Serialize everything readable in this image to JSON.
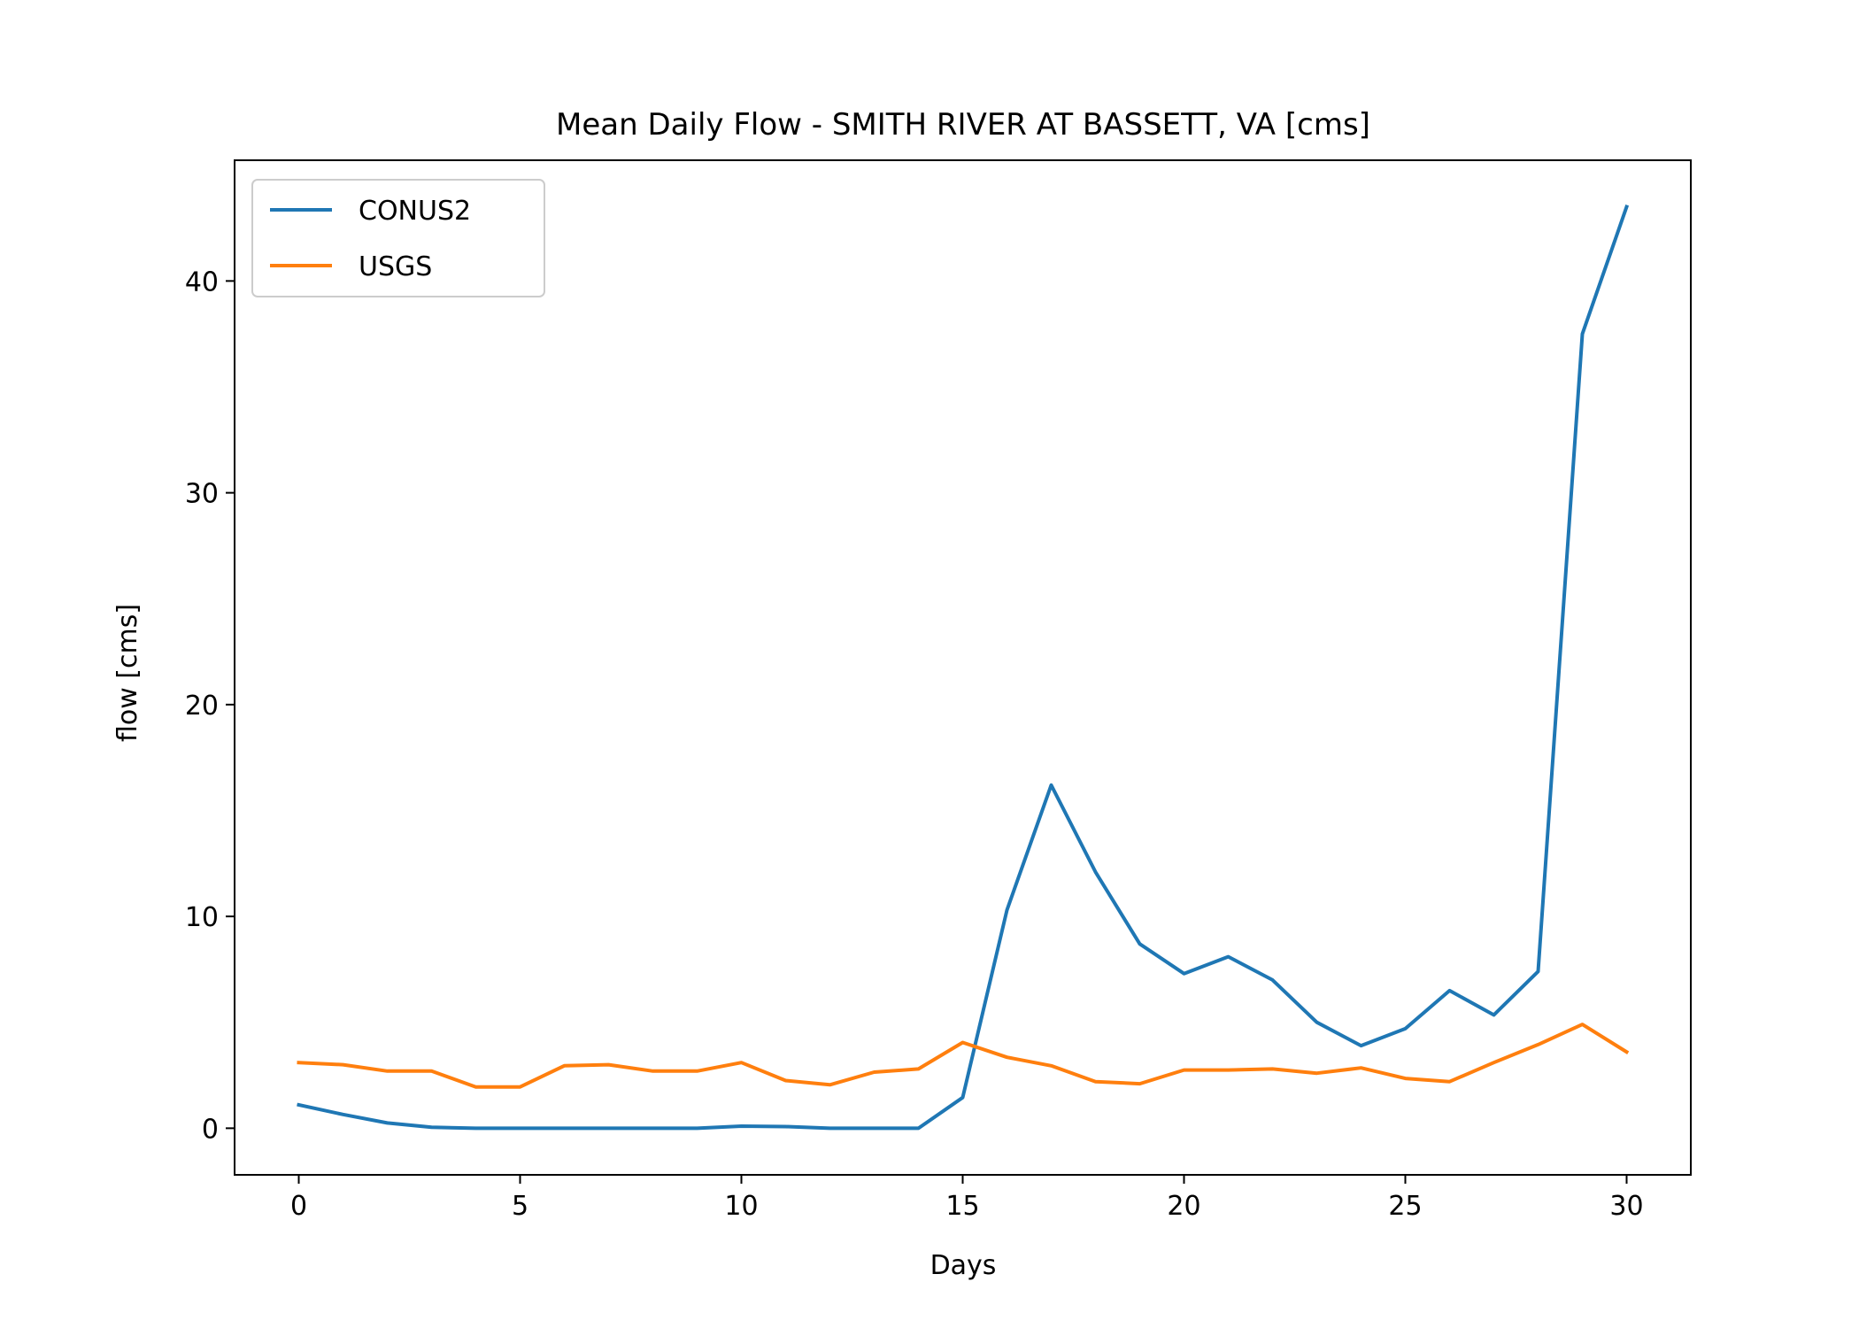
{
  "chart_data": {
    "type": "line",
    "title": "Mean Daily Flow - SMITH RIVER AT BASSETT, VA [cms]",
    "xlabel": "Days",
    "ylabel": "flow [cms]",
    "xlim": [
      -1.45,
      31.45
    ],
    "ylim": [
      -2.2,
      45.7
    ],
    "xticks": [
      0,
      5,
      10,
      15,
      20,
      25,
      30
    ],
    "yticks": [
      0,
      10,
      20,
      30,
      40
    ],
    "grid": false,
    "legend_position": "upper-left",
    "x": [
      0,
      1,
      2,
      3,
      4,
      5,
      6,
      7,
      8,
      9,
      10,
      11,
      12,
      13,
      14,
      15,
      16,
      17,
      18,
      19,
      20,
      21,
      22,
      23,
      24,
      25,
      26,
      27,
      28,
      29,
      30
    ],
    "series": [
      {
        "name": "CONUS2",
        "color": "#1f77b4",
        "values": [
          1.1,
          0.65,
          0.25,
          0.05,
          0.0,
          0.0,
          0.0,
          0.0,
          0.0,
          0.0,
          0.1,
          0.08,
          0.0,
          0.0,
          0.0,
          1.45,
          10.3,
          16.2,
          12.1,
          8.7,
          7.3,
          8.1,
          7.0,
          5.0,
          3.9,
          4.7,
          6.5,
          5.35,
          7.4,
          37.5,
          43.5
        ]
      },
      {
        "name": "USGS",
        "color": "#ff7f0e",
        "values": [
          3.1,
          3.0,
          2.7,
          2.7,
          1.95,
          1.95,
          2.95,
          3.0,
          2.7,
          2.7,
          3.1,
          2.25,
          2.05,
          2.65,
          2.8,
          4.05,
          3.35,
          2.95,
          2.2,
          2.1,
          2.75,
          2.75,
          2.8,
          2.6,
          2.85,
          2.35,
          2.2,
          3.1,
          3.95,
          4.9,
          3.6
        ]
      }
    ]
  }
}
